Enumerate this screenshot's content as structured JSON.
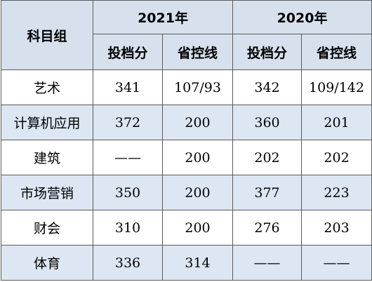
{
  "table": {
    "header_subject": "科目组",
    "years": [
      {
        "label": "2021年"
      },
      {
        "label": "2020年"
      }
    ],
    "subheaders": [
      "投档分",
      "省控线",
      "投档分",
      "省控线"
    ],
    "rows": [
      {
        "subject": "艺术",
        "cells": [
          "341",
          "107/93",
          "342",
          "109/142"
        ]
      },
      {
        "subject": "计算机应用",
        "cells": [
          "372",
          "200",
          "360",
          "201"
        ]
      },
      {
        "subject": "建筑",
        "cells": [
          "——",
          "200",
          "202",
          "202"
        ]
      },
      {
        "subject": "市场营销",
        "cells": [
          "350",
          "200",
          "377",
          "223"
        ]
      },
      {
        "subject": "财会",
        "cells": [
          "310",
          "200",
          "276",
          "203"
        ]
      },
      {
        "subject": "体育",
        "cells": [
          "336",
          "314",
          "——",
          "——"
        ]
      }
    ]
  },
  "colors": {
    "header_bg": "#d7e1ee",
    "alt_row_bg": "#dde7f3",
    "border": "#5a5a5a"
  }
}
